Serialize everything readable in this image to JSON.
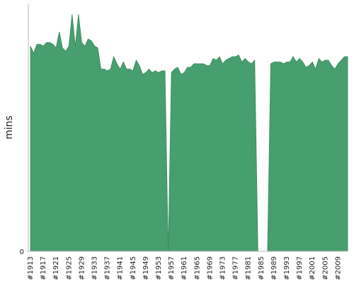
{
  "chart_data": {
    "type": "area",
    "y_label": "mins",
    "color": "#479e6e",
    "categories": [
      "#1913",
      null,
      null,
      null,
      "#1917",
      null,
      null,
      null,
      "#1921",
      null,
      null,
      null,
      "#1925",
      null,
      null,
      null,
      "#1929",
      null,
      null,
      null,
      "#1933",
      null,
      null,
      null,
      "#1937",
      null,
      null,
      null,
      "#1941",
      null,
      null,
      null,
      "#1945",
      null,
      null,
      null,
      "#1949",
      null,
      null,
      null,
      "#1953",
      null,
      null,
      null,
      "#1957",
      null,
      null,
      null,
      "#1961",
      null,
      null,
      null,
      "#1965",
      null,
      null,
      null,
      "#1969",
      null,
      null,
      null,
      "#1973",
      null,
      null,
      null,
      "#1977",
      null,
      null,
      null,
      "#1981",
      null,
      null,
      null,
      "#1985",
      null,
      null,
      null,
      "#1989",
      null,
      null,
      null,
      "#1993",
      null,
      null,
      null,
      "#1997",
      null,
      null,
      null,
      "#2001",
      null,
      null,
      null,
      "#2005",
      null,
      null,
      null,
      "#2009",
      null,
      null,
      null
    ],
    "values": [
      116,
      112,
      117,
      117,
      116,
      118,
      118,
      117,
      115,
      124,
      115,
      113,
      116,
      134,
      116,
      134,
      118,
      116,
      120,
      119,
      116,
      115,
      103,
      103,
      102,
      103,
      110,
      106,
      103,
      107,
      103,
      103,
      102,
      108,
      105,
      100,
      101,
      103,
      101,
      102,
      101,
      102,
      102,
      0,
      101,
      103,
      104,
      100,
      101,
      104,
      104,
      106,
      106,
      106,
      106,
      105,
      105,
      109,
      108,
      110,
      106,
      108,
      109,
      110,
      110,
      111,
      107,
      109,
      107,
      106,
      108,
      0,
      0,
      0,
      0,
      106,
      107,
      107,
      107,
      106,
      107,
      107,
      110,
      107,
      109,
      107,
      104,
      105,
      107,
      103,
      109,
      107,
      108,
      108,
      105,
      103,
      106,
      108,
      110,
      110
    ],
    "ylim": [
      0,
      140
    ],
    "yticks": [
      0
    ]
  }
}
